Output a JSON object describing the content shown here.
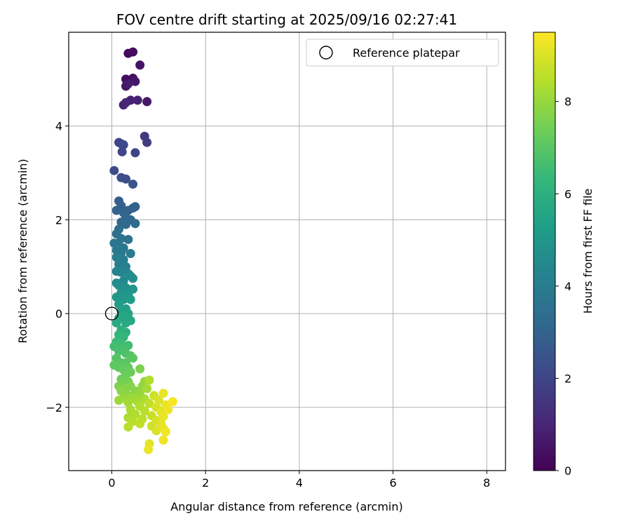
{
  "chart_data": {
    "type": "scatter",
    "title": "FOV centre drift starting at 2025/09/16 02:27:41",
    "xlabel": "Angular distance from reference (arcmin)",
    "ylabel": "Rotation from reference (arcmin)",
    "xlim": [
      -0.92,
      8.4
    ],
    "ylim": [
      -3.35,
      6.0
    ],
    "xticks": [
      0,
      2,
      4,
      6,
      8
    ],
    "yticks": [
      -2,
      0,
      2,
      4
    ],
    "xtick_labels": [
      "0",
      "2",
      "4",
      "6",
      "8"
    ],
    "ytick_labels": [
      "−2",
      "0",
      "2",
      "4"
    ],
    "grid": true,
    "legend": {
      "position": "top-right",
      "entries": [
        "Reference platepar"
      ]
    },
    "reference_point": {
      "x": 0,
      "y": 0
    },
    "colorbar": {
      "label": "Hours from first FF file",
      "range": [
        0,
        9.5
      ],
      "ticks": [
        0,
        2,
        4,
        6,
        8
      ],
      "tick_labels": [
        "0",
        "2",
        "4",
        "6",
        "8"
      ],
      "colormap": "viridis"
    },
    "series": [
      {
        "color_by": "hours",
        "points": [
          {
            "x": 0.35,
            "y": 5.55,
            "h": 0.2
          },
          {
            "x": 0.45,
            "y": 5.58,
            "h": 0.3
          },
          {
            "x": 0.6,
            "y": 5.3,
            "h": 0.5
          },
          {
            "x": 0.3,
            "y": 5.0,
            "h": 0.3
          },
          {
            "x": 0.45,
            "y": 5.02,
            "h": 0.4
          },
          {
            "x": 0.5,
            "y": 4.95,
            "h": 0.6
          },
          {
            "x": 0.35,
            "y": 4.9,
            "h": 0.7
          },
          {
            "x": 0.3,
            "y": 4.85,
            "h": 0.5
          },
          {
            "x": 0.4,
            "y": 4.55,
            "h": 0.8
          },
          {
            "x": 0.55,
            "y": 4.55,
            "h": 0.9
          },
          {
            "x": 0.75,
            "y": 4.52,
            "h": 0.6
          },
          {
            "x": 0.3,
            "y": 4.5,
            "h": 1.0
          },
          {
            "x": 0.25,
            "y": 4.45,
            "h": 0.9
          },
          {
            "x": 0.7,
            "y": 3.78,
            "h": 1.6
          },
          {
            "x": 0.75,
            "y": 3.65,
            "h": 1.7
          },
          {
            "x": 0.15,
            "y": 3.65,
            "h": 2.0
          },
          {
            "x": 0.2,
            "y": 3.62,
            "h": 2.0
          },
          {
            "x": 0.25,
            "y": 3.6,
            "h": 2.1
          },
          {
            "x": 0.22,
            "y": 3.45,
            "h": 2.0
          },
          {
            "x": 0.5,
            "y": 3.43,
            "h": 2.0
          },
          {
            "x": 0.05,
            "y": 3.05,
            "h": 2.2
          },
          {
            "x": 0.2,
            "y": 2.9,
            "h": 2.3
          },
          {
            "x": 0.3,
            "y": 2.87,
            "h": 2.3
          },
          {
            "x": 0.45,
            "y": 2.76,
            "h": 2.5
          },
          {
            "x": 0.15,
            "y": 2.4,
            "h": 2.8
          },
          {
            "x": 0.2,
            "y": 2.3,
            "h": 2.8
          },
          {
            "x": 0.5,
            "y": 2.28,
            "h": 2.9
          },
          {
            "x": 0.45,
            "y": 2.25,
            "h": 3.0
          },
          {
            "x": 0.35,
            "y": 2.2,
            "h": 2.9
          },
          {
            "x": 0.1,
            "y": 2.2,
            "h": 3.0
          },
          {
            "x": 0.25,
            "y": 2.15,
            "h": 3.1
          },
          {
            "x": 0.3,
            "y": 2.05,
            "h": 3.1
          },
          {
            "x": 0.4,
            "y": 2.0,
            "h": 3.2
          },
          {
            "x": 0.2,
            "y": 1.95,
            "h": 3.2
          },
          {
            "x": 0.3,
            "y": 1.9,
            "h": 3.3
          },
          {
            "x": 0.5,
            "y": 1.92,
            "h": 3.3
          },
          {
            "x": 0.15,
            "y": 1.8,
            "h": 3.4
          },
          {
            "x": 0.1,
            "y": 1.7,
            "h": 3.5
          },
          {
            "x": 0.2,
            "y": 1.6,
            "h": 3.6
          },
          {
            "x": 0.35,
            "y": 1.58,
            "h": 3.6
          },
          {
            "x": 0.05,
            "y": 1.5,
            "h": 3.7
          },
          {
            "x": 0.15,
            "y": 1.45,
            "h": 3.7
          },
          {
            "x": 0.25,
            "y": 1.4,
            "h": 3.8
          },
          {
            "x": 0.1,
            "y": 1.35,
            "h": 3.9
          },
          {
            "x": 0.2,
            "y": 1.3,
            "h": 3.9
          },
          {
            "x": 0.4,
            "y": 1.28,
            "h": 3.9
          },
          {
            "x": 0.1,
            "y": 1.2,
            "h": 4.0
          },
          {
            "x": 0.25,
            "y": 1.15,
            "h": 4.0
          },
          {
            "x": 0.15,
            "y": 1.05,
            "h": 4.1
          },
          {
            "x": 0.3,
            "y": 1.0,
            "h": 4.2
          },
          {
            "x": 0.1,
            "y": 0.9,
            "h": 4.3
          },
          {
            "x": 0.2,
            "y": 0.88,
            "h": 4.3
          },
          {
            "x": 0.35,
            "y": 0.85,
            "h": 4.4
          },
          {
            "x": 0.4,
            "y": 0.8,
            "h": 4.6
          },
          {
            "x": 0.45,
            "y": 0.75,
            "h": 4.7
          },
          {
            "x": 0.25,
            "y": 0.7,
            "h": 4.5
          },
          {
            "x": 0.1,
            "y": 0.65,
            "h": 4.6
          },
          {
            "x": 0.15,
            "y": 0.6,
            "h": 4.7
          },
          {
            "x": 0.3,
            "y": 0.55,
            "h": 4.8
          },
          {
            "x": 0.45,
            "y": 0.52,
            "h": 4.9
          },
          {
            "x": 0.2,
            "y": 0.45,
            "h": 4.9
          },
          {
            "x": 0.35,
            "y": 0.4,
            "h": 5.0
          },
          {
            "x": 0.1,
            "y": 0.35,
            "h": 5.0
          },
          {
            "x": 0.25,
            "y": 0.3,
            "h": 5.1
          },
          {
            "x": 0.4,
            "y": 0.3,
            "h": 5.2
          },
          {
            "x": 0.15,
            "y": 0.2,
            "h": 5.2
          },
          {
            "x": 0.3,
            "y": 0.1,
            "h": 5.3
          },
          {
            "x": 0.2,
            "y": 0.05,
            "h": 5.4
          },
          {
            "x": 0.35,
            "y": 0.0,
            "h": 5.5
          },
          {
            "x": 0.25,
            "y": -0.05,
            "h": 5.6
          },
          {
            "x": 0.15,
            "y": -0.1,
            "h": 5.6
          },
          {
            "x": 0.4,
            "y": -0.15,
            "h": 5.6
          },
          {
            "x": 0.3,
            "y": -0.2,
            "h": 5.7
          },
          {
            "x": 0.1,
            "y": -0.2,
            "h": 5.8
          },
          {
            "x": 0.2,
            "y": -0.35,
            "h": 6.0
          },
          {
            "x": 0.3,
            "y": -0.4,
            "h": 6.1
          },
          {
            "x": 0.15,
            "y": -0.45,
            "h": 6.2
          },
          {
            "x": 0.25,
            "y": -0.5,
            "h": 6.3
          },
          {
            "x": 0.1,
            "y": -0.6,
            "h": 6.4
          },
          {
            "x": 0.2,
            "y": -0.65,
            "h": 6.5
          },
          {
            "x": 0.35,
            "y": -0.68,
            "h": 6.6
          },
          {
            "x": 0.05,
            "y": -0.7,
            "h": 6.6
          },
          {
            "x": 0.25,
            "y": -0.75,
            "h": 6.7
          },
          {
            "x": 0.15,
            "y": -0.8,
            "h": 6.7
          },
          {
            "x": 0.3,
            "y": -0.85,
            "h": 6.8
          },
          {
            "x": 0.4,
            "y": -0.9,
            "h": 6.9
          },
          {
            "x": 0.1,
            "y": -0.95,
            "h": 6.9
          },
          {
            "x": 0.45,
            "y": -0.95,
            "h": 7.0
          },
          {
            "x": 0.2,
            "y": -1.05,
            "h": 7.0
          },
          {
            "x": 0.3,
            "y": -1.05,
            "h": 7.0
          },
          {
            "x": 0.05,
            "y": -1.1,
            "h": 7.1
          },
          {
            "x": 0.15,
            "y": -1.15,
            "h": 7.1
          },
          {
            "x": 0.35,
            "y": -1.15,
            "h": 7.2
          },
          {
            "x": 0.6,
            "y": -1.18,
            "h": 7.6
          },
          {
            "x": 0.25,
            "y": -1.2,
            "h": 7.2
          },
          {
            "x": 0.4,
            "y": -1.25,
            "h": 7.3
          },
          {
            "x": 0.3,
            "y": -1.3,
            "h": 7.3
          },
          {
            "x": 0.2,
            "y": -1.4,
            "h": 7.4
          },
          {
            "x": 0.35,
            "y": -1.45,
            "h": 7.5
          },
          {
            "x": 0.7,
            "y": -1.45,
            "h": 8.0
          },
          {
            "x": 0.8,
            "y": -1.42,
            "h": 8.4
          },
          {
            "x": 0.25,
            "y": -1.5,
            "h": 7.5
          },
          {
            "x": 0.15,
            "y": -1.55,
            "h": 7.6
          },
          {
            "x": 0.4,
            "y": -1.55,
            "h": 7.7
          },
          {
            "x": 0.65,
            "y": -1.55,
            "h": 7.9
          },
          {
            "x": 0.3,
            "y": -1.6,
            "h": 7.7
          },
          {
            "x": 0.75,
            "y": -1.6,
            "h": 8.2
          },
          {
            "x": 0.2,
            "y": -1.65,
            "h": 7.8
          },
          {
            "x": 0.5,
            "y": -1.65,
            "h": 7.8
          },
          {
            "x": 1.1,
            "y": -1.7,
            "h": 9.2
          },
          {
            "x": 0.6,
            "y": -1.72,
            "h": 8.0
          },
          {
            "x": 0.35,
            "y": -1.75,
            "h": 7.9
          },
          {
            "x": 0.9,
            "y": -1.75,
            "h": 8.8
          },
          {
            "x": 0.25,
            "y": -1.8,
            "h": 8.0
          },
          {
            "x": 0.45,
            "y": -1.8,
            "h": 8.1
          },
          {
            "x": 0.7,
            "y": -1.82,
            "h": 8.3
          },
          {
            "x": 1.0,
            "y": -1.85,
            "h": 9.0
          },
          {
            "x": 0.15,
            "y": -1.85,
            "h": 8.1
          },
          {
            "x": 0.55,
            "y": -1.88,
            "h": 8.2
          },
          {
            "x": 1.3,
            "y": -1.88,
            "h": 9.4
          },
          {
            "x": 0.35,
            "y": -1.9,
            "h": 8.2
          },
          {
            "x": 0.8,
            "y": -1.92,
            "h": 8.6
          },
          {
            "x": 1.15,
            "y": -1.95,
            "h": 9.2
          },
          {
            "x": 0.6,
            "y": -1.98,
            "h": 8.4
          },
          {
            "x": 0.95,
            "y": -2.0,
            "h": 8.9
          },
          {
            "x": 1.2,
            "y": -2.05,
            "h": 9.3
          },
          {
            "x": 0.4,
            "y": -2.05,
            "h": 8.3
          },
          {
            "x": 0.7,
            "y": -2.08,
            "h": 8.5
          },
          {
            "x": 1.05,
            "y": -2.1,
            "h": 9.1
          },
          {
            "x": 0.5,
            "y": -2.15,
            "h": 8.4
          },
          {
            "x": 0.85,
            "y": -2.18,
            "h": 8.7
          },
          {
            "x": 1.1,
            "y": -2.2,
            "h": 9.2
          },
          {
            "x": 0.35,
            "y": -2.22,
            "h": 8.3
          },
          {
            "x": 0.65,
            "y": -2.25,
            "h": 8.5
          },
          {
            "x": 0.95,
            "y": -2.28,
            "h": 8.9
          },
          {
            "x": 0.45,
            "y": -2.3,
            "h": 8.5
          },
          {
            "x": 1.05,
            "y": -2.35,
            "h": 9.1
          },
          {
            "x": 0.6,
            "y": -2.35,
            "h": 8.6
          },
          {
            "x": 0.85,
            "y": -2.4,
            "h": 8.8
          },
          {
            "x": 0.35,
            "y": -2.42,
            "h": 8.5
          },
          {
            "x": 1.1,
            "y": -2.45,
            "h": 9.2
          },
          {
            "x": 0.95,
            "y": -2.5,
            "h": 9.0
          },
          {
            "x": 1.15,
            "y": -2.52,
            "h": 9.3
          },
          {
            "x": 1.1,
            "y": -2.7,
            "h": 9.3
          },
          {
            "x": 0.8,
            "y": -2.78,
            "h": 9.1
          },
          {
            "x": 0.78,
            "y": -2.9,
            "h": 9.2
          }
        ]
      }
    ]
  }
}
